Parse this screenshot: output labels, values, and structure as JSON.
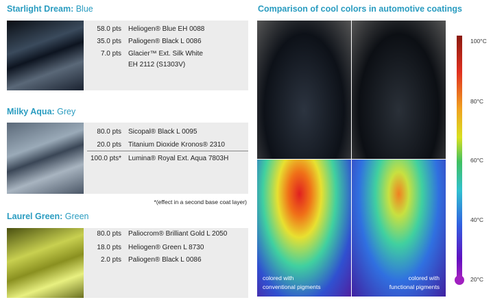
{
  "sections": [
    {
      "name": "Starlight Dream:",
      "shade": "Blue",
      "rows": [
        {
          "pts": "58.0 pts",
          "pigment": [
            "Heliogen® Blue EH 0088"
          ]
        },
        {
          "pts": "35.0 pts",
          "pigment": [
            "Paliogen® Black L 0086"
          ]
        },
        {
          "pts": "7.0 pts",
          "pigment": [
            "Glacier™ Ext. Silk White",
            "EH 2112 (S1303V)"
          ]
        }
      ]
    },
    {
      "name": "Milky Aqua:",
      "shade": "Grey",
      "rows": [
        {
          "pts": "80.0 pts",
          "pigment": [
            "Sicopal® Black L 0095"
          ]
        },
        {
          "pts": "20.0 pts",
          "pigment": [
            "Titanium Dioxide Kronos® 2310"
          ]
        },
        {
          "pts": "100.0 pts*",
          "pigment": [
            "Lumina® Royal Ext. Aqua 7803H"
          ]
        }
      ]
    },
    {
      "name": "Laurel Green:",
      "shade": "Green",
      "rows": [
        {
          "pts": "80.0 pts",
          "pigment": [
            "Paliocrom® Brilliant Gold L 2050"
          ]
        },
        {
          "pts": "18.0 pts",
          "pigment": [
            "Heliogen® Green L 8730"
          ]
        },
        {
          "pts": "2.0 pts",
          "pigment": [
            "Paliogen® Black L 0086"
          ]
        }
      ]
    }
  ],
  "note": "*(effect in a second base coat layer)",
  "comparison": {
    "title": "Comparison of cool colors in automotive coatings",
    "scale_labels": [
      "100°C",
      "80°C",
      "60°C",
      "40°C",
      "20°C"
    ],
    "captions": [
      [
        "colored with",
        "conventional pigments"
      ],
      [
        "colored with",
        "functional pigments"
      ]
    ]
  }
}
